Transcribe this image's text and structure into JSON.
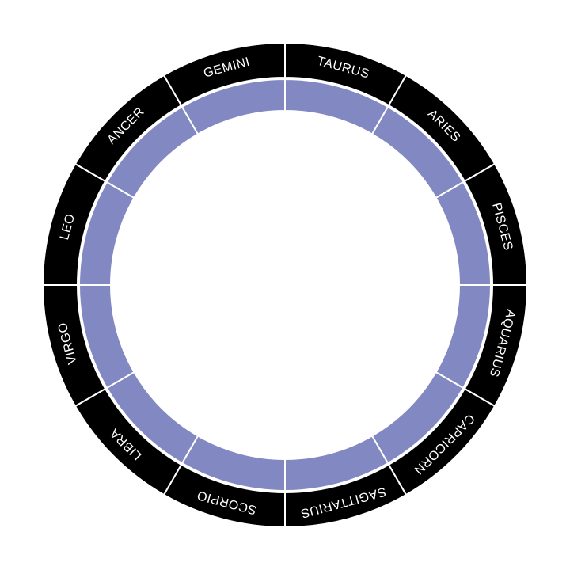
{
  "wheel": {
    "signs": [
      {
        "name": "TAURUS"
      },
      {
        "name": "ARIES"
      },
      {
        "name": "PISCES"
      },
      {
        "name": "AQUARIUS"
      },
      {
        "name": "CAPRICORN"
      },
      {
        "name": "SAGITTARIUS"
      },
      {
        "name": "SCORPIO"
      },
      {
        "name": "LIBRA"
      },
      {
        "name": "VIRGO"
      },
      {
        "name": "LEO"
      },
      {
        "name": "ANCER"
      },
      {
        "name": "GEMINI"
      }
    ],
    "colors": {
      "outer_ring": "#000000",
      "inner_ring": "#8288c2",
      "sign_text": "#ffffff",
      "divider": "#ffffff",
      "background": "#ffffff"
    }
  }
}
